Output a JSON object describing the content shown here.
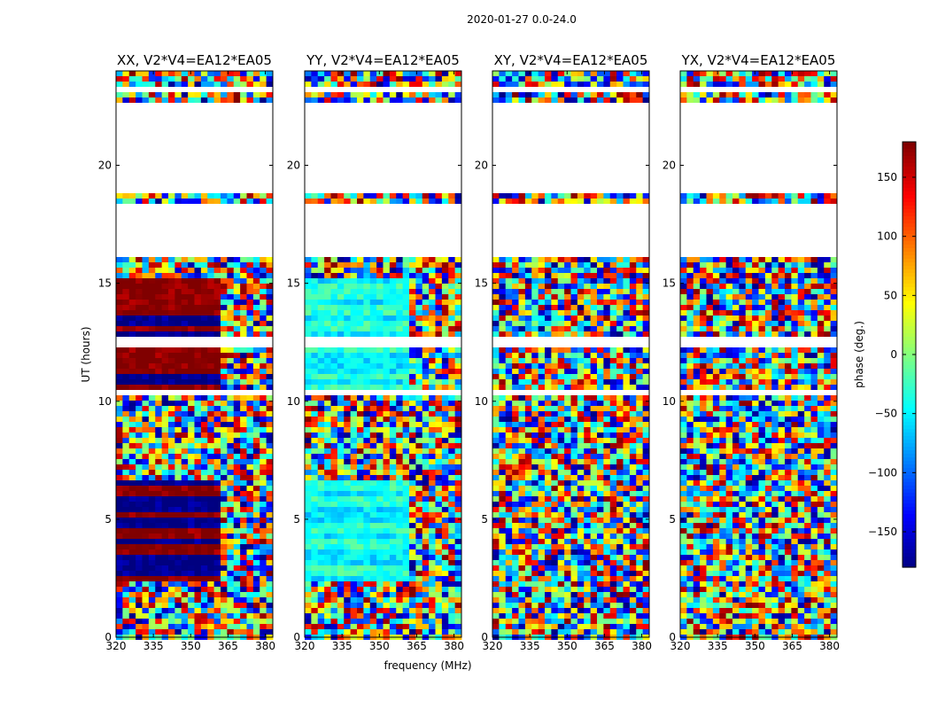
{
  "figure": {
    "suptitle": "2020-01-27 0.0-24.0",
    "ylabel": "UT (hours)",
    "xlabel": "frequency (MHz)",
    "colorbar_label": "phase (deg.)"
  },
  "chart_data": {
    "type": "heatmap",
    "colormap": "jet",
    "colorbar": {
      "range": [
        -180,
        180
      ],
      "ticks": [
        -150,
        -100,
        -50,
        0,
        50,
        100,
        150
      ],
      "tick_labels": [
        "−150",
        "−100",
        "−50",
        "0",
        "50",
        "100",
        "150"
      ]
    },
    "xlim": [
      320,
      383
    ],
    "ylim": [
      0,
      24
    ],
    "xticks": [
      320,
      335,
      350,
      365,
      380
    ],
    "xtick_labels": [
      "320",
      "335",
      "350",
      "365",
      "380"
    ],
    "yticks": [
      0,
      5,
      10,
      15,
      20
    ],
    "ytick_labels": [
      "0",
      "5",
      "10",
      "15",
      "20"
    ],
    "flagged_ut_ranges": [
      [
        16.2,
        18.4
      ],
      [
        18.9,
        22.6
      ],
      [
        10.3,
        10.5
      ],
      [
        12.2,
        12.8
      ],
      [
        23.2,
        23.4
      ]
    ],
    "panels": [
      {
        "title": "XX, V2*V4=EA12*EA05",
        "mode": "strong",
        "c1": 0.0,
        "c2": 1.0
      },
      {
        "title": "YY, V2*V4=EA12*EA05",
        "mode": "coherent",
        "c1": 0.35,
        "c2": 0.42
      },
      {
        "title": "XY, V2*V4=EA12*EA05",
        "mode": "noise",
        "c1": 0.5,
        "c2": 0.5
      },
      {
        "title": "YX, V2*V4=EA12*EA05",
        "mode": "noise",
        "c1": 0.5,
        "c2": 0.5
      }
    ]
  }
}
